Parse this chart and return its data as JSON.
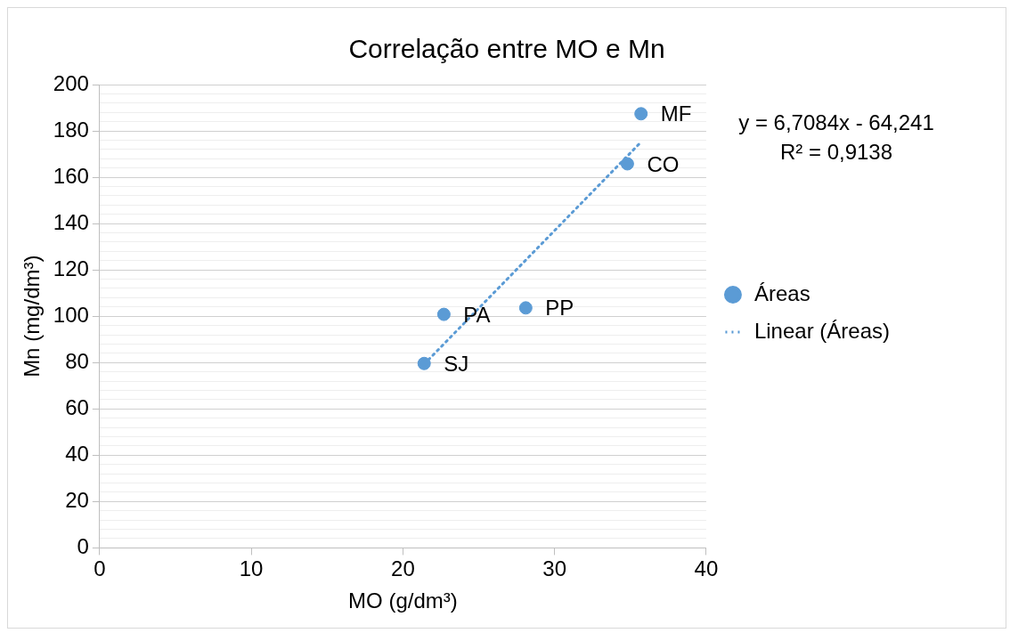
{
  "chart_data": {
    "type": "scatter",
    "title": "Correlação entre MO e Mn",
    "xlabel": "MO (g/dm³)",
    "ylabel": "Mn (mg/dm³)",
    "series": [
      {
        "name": "Áreas",
        "color": "#5b9bd5",
        "x": [
          21.4,
          22.7,
          28.1,
          34.8,
          35.7
        ],
        "values": [
          79.6,
          100.8,
          103.6,
          165.8,
          187.4
        ],
        "marker": "circle"
      },
      {
        "name": "Linear (Áreas)",
        "type": "line",
        "color": "#5b9bd5",
        "x": [
          21.4,
          35.7
        ],
        "values": [
          79.3,
          175.2
        ],
        "marker": "none",
        "line_style": "dotted"
      }
    ],
    "annotations": [
      {
        "text": "SJ",
        "x": 21.4,
        "y": 79.6
      },
      {
        "text": "PA",
        "x": 22.7,
        "y": 100.8
      },
      {
        "text": "PP",
        "x": 28.1,
        "y": 103.6
      },
      {
        "text": "CO",
        "x": 34.8,
        "y": 165.8
      },
      {
        "text": "MF",
        "x": 35.7,
        "y": 187.4
      },
      "y = 6,7084x - 64,241\nR² = 0,9138"
    ],
    "xlim": [
      0,
      40
    ],
    "xticks": [
      0,
      10,
      20,
      30,
      40
    ],
    "ylim": [
      0,
      200
    ],
    "yticks": [
      0,
      {
        "value": 4,
        "label": null
      },
      {
        "value": 8,
        "label": null
      },
      {
        "value": 12,
        "label": null
      },
      {
        "value": 16,
        "label": null
      },
      20,
      {
        "value": 24,
        "label": null
      },
      {
        "value": 28,
        "label": null
      },
      {
        "value": 32,
        "label": null
      },
      {
        "value": 36,
        "label": null
      },
      40,
      {
        "value": 44,
        "label": null
      },
      {
        "value": 48,
        "label": null
      },
      {
        "value": 52,
        "label": null
      },
      {
        "value": 56,
        "label": null
      },
      60,
      {
        "value": 64,
        "label": null
      },
      {
        "value": 68,
        "label": null
      },
      {
        "value": 72,
        "label": null
      },
      {
        "value": 76,
        "label": null
      },
      80,
      {
        "value": 84,
        "label": null
      },
      {
        "value": 88,
        "label": null
      },
      {
        "value": 92,
        "label": null
      },
      {
        "value": 96,
        "label": null
      },
      100,
      {
        "value": 104,
        "label": null
      },
      {
        "value": 108,
        "label": null
      },
      {
        "value": 112,
        "label": null
      },
      {
        "value": 116,
        "label": null
      },
      120,
      {
        "value": 124,
        "label": null
      },
      {
        "value": 128,
        "label": null
      },
      {
        "value": 132,
        "label": null
      },
      {
        "value": 136,
        "label": null
      },
      140,
      {
        "value": 144,
        "label": null
      },
      {
        "value": 148,
        "label": null
      },
      {
        "value": 152,
        "label": null
      },
      {
        "value": 156,
        "label": null
      },
      160,
      {
        "value": 164,
        "label": null
      },
      {
        "value": 168,
        "label": null
      },
      {
        "value": 172,
        "label": null
      },
      {
        "value": 176,
        "label": null
      },
      180,
      {
        "value": 184,
        "label": null
      },
      {
        "value": 188,
        "label": null
      },
      {
        "value": 192,
        "label": null
      },
      {
        "value": 196,
        "label": null
      },
      200
    ],
    "grid": "y",
    "legend": "right"
  }
}
